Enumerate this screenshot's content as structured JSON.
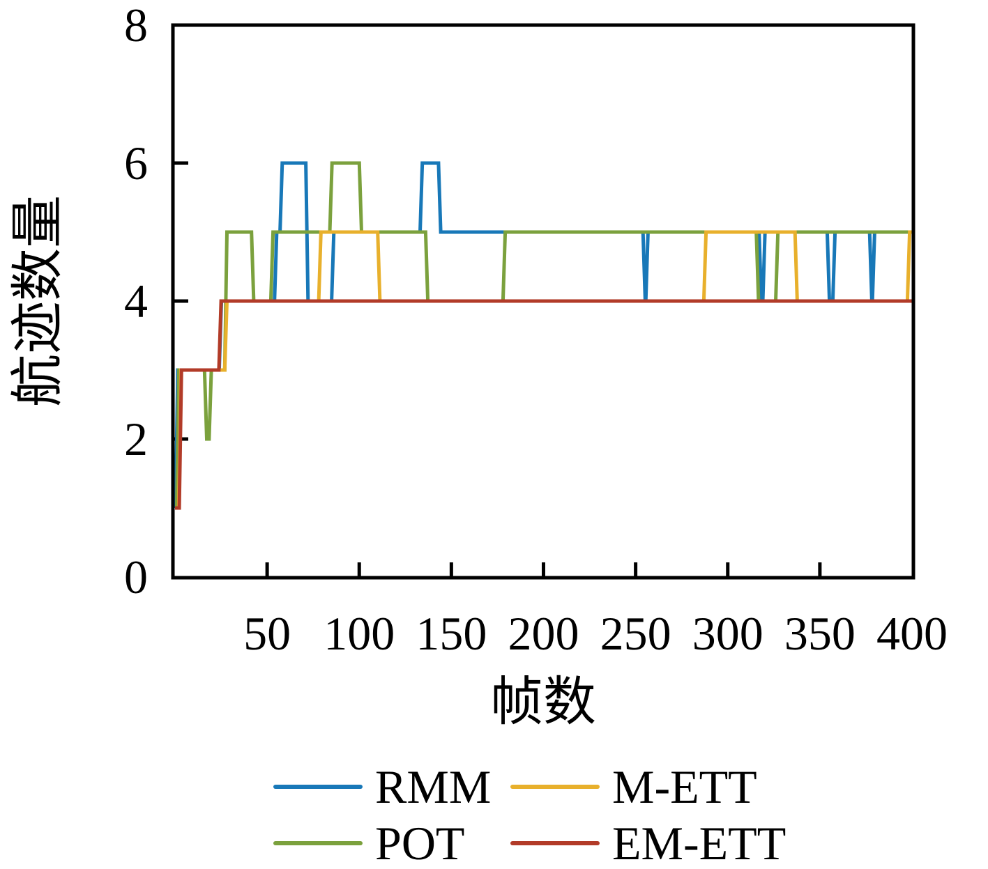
{
  "background": "#ffffff",
  "axis_color": "#000000",
  "chart_data": {
    "type": "line",
    "title": "",
    "xlabel": "帧数",
    "ylabel": "航迹数量",
    "xlim": [
      0,
      400
    ],
    "ylim": [
      0,
      8
    ],
    "x_ticks": [
      50,
      100,
      150,
      200,
      250,
      300,
      350,
      400
    ],
    "y_ticks": [
      0,
      2,
      4,
      6,
      8
    ],
    "grid": false,
    "legend_position": "below",
    "step_mode": "post",
    "x_end": 400.7,
    "series": [
      {
        "name": "RMM",
        "color": "#1878b8",
        "breakpoints": [
          [
            0,
            1
          ],
          [
            0.3,
            3
          ],
          [
            24,
            4
          ],
          [
            54,
            5
          ],
          [
            57,
            6
          ],
          [
            71,
            4
          ],
          [
            85,
            5
          ],
          [
            133,
            6
          ],
          [
            143,
            5
          ],
          [
            254,
            4
          ],
          [
            255.5,
            5
          ],
          [
            317,
            4
          ],
          [
            319,
            5
          ],
          [
            354,
            4
          ],
          [
            357,
            5
          ],
          [
            377,
            4
          ],
          [
            378.5,
            5
          ]
        ]
      },
      {
        "name": "POT",
        "color": "#7ba13d",
        "breakpoints": [
          [
            0,
            1
          ],
          [
            0.9,
            3
          ],
          [
            16,
            2
          ],
          [
            18.5,
            3
          ],
          [
            27,
            5
          ],
          [
            41.5,
            4
          ],
          [
            52,
            5
          ],
          [
            84,
            6
          ],
          [
            100,
            5
          ],
          [
            136,
            4
          ],
          [
            178,
            5
          ],
          [
            315.5,
            4
          ],
          [
            326,
            5
          ]
        ]
      },
      {
        "name": "M-ETT",
        "color": "#e8b02c",
        "breakpoints": [
          [
            0,
            1
          ],
          [
            2.0,
            3
          ],
          [
            27,
            4
          ],
          [
            78,
            5
          ],
          [
            110,
            4
          ],
          [
            287,
            5
          ],
          [
            336.5,
            4
          ],
          [
            397.5,
            5
          ]
        ]
      },
      {
        "name": "EM-ETT",
        "color": "#b23b28",
        "breakpoints": [
          [
            0,
            1
          ],
          [
            2.3,
            3
          ],
          [
            23.8,
            4
          ]
        ]
      }
    ],
    "legend_rows": [
      [
        "RMM",
        "M-ETT"
      ],
      [
        "POT",
        "EM-ETT"
      ]
    ]
  }
}
